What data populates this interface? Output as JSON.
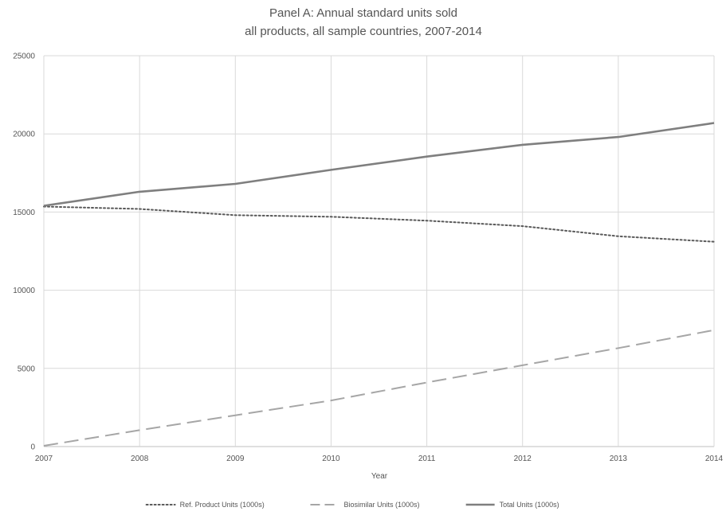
{
  "chart_data": {
    "type": "line",
    "title": "Panel A: Annual standard units sold",
    "subtitle": "all products, all sample countries, 2007-2014",
    "xlabel": "Year",
    "ylabel": "",
    "x": [
      "2007",
      "2008",
      "2009",
      "2010",
      "2011",
      "2012",
      "2013",
      "2014"
    ],
    "ylim": [
      0,
      25000
    ],
    "yticks": [
      "0",
      "5000",
      "10000",
      "15000",
      "20000",
      "25000"
    ],
    "grid": true,
    "legend_position": "bottom",
    "series": [
      {
        "name": "Ref. Product Units (1000s)",
        "style": "dotted",
        "color": "#595959",
        "values": [
          15350,
          15200,
          14800,
          14700,
          14450,
          14100,
          13450,
          13100
        ]
      },
      {
        "name": "Biosimilar Units (1000s)",
        "style": "dashed",
        "color": "#a6a6a6",
        "values": [
          50,
          1050,
          2000,
          2950,
          4100,
          5200,
          6300,
          7450
        ]
      },
      {
        "name": "Total Units (1000s)",
        "style": "solid",
        "color": "#7f7f7f",
        "values": [
          15400,
          16300,
          16800,
          17700,
          18550,
          19300,
          19800,
          20700
        ]
      }
    ]
  }
}
